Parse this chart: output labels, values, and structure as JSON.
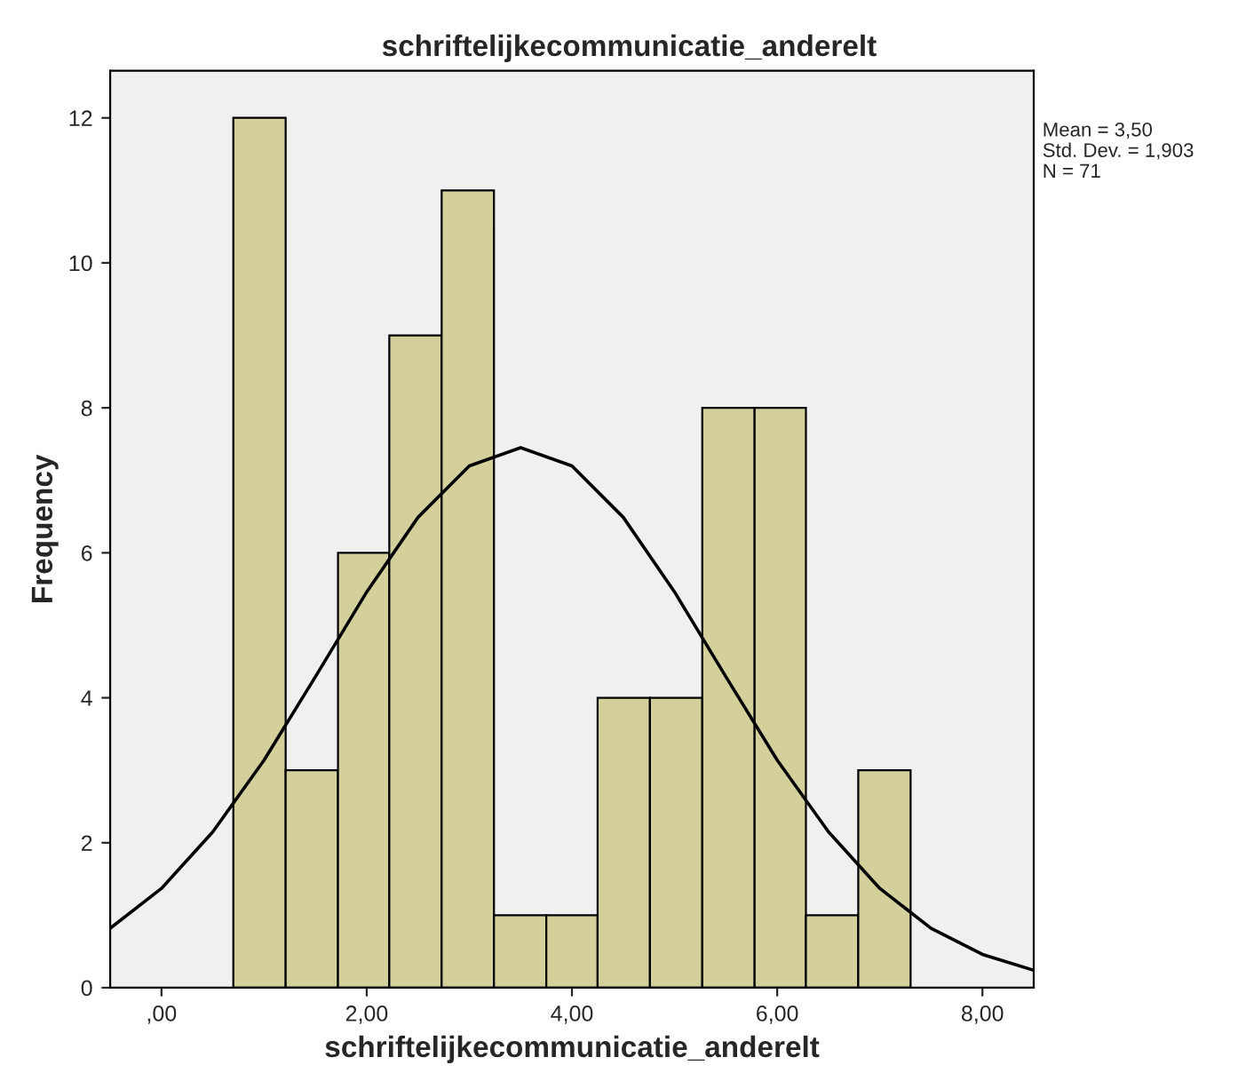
{
  "chart_data": {
    "type": "histogram",
    "title": "schriftelijkecommunicatie_anderelt",
    "xlabel": "schriftelijkecommunicatie_anderelt",
    "ylabel": "Frequency",
    "series": [
      {
        "color": "#d4d09c",
        "bins": [
          0.7,
          1.21,
          1.72,
          2.22,
          2.73,
          3.24,
          3.75,
          4.25,
          4.76,
          5.27,
          5.78,
          6.28,
          6.79,
          7.3
        ],
        "values": [
          12,
          3,
          6,
          9,
          11,
          1,
          1,
          4,
          4,
          8,
          8,
          1,
          3
        ]
      },
      {
        "type": "line",
        "color": "#000000",
        "x": [
          -0.5,
          0,
          0.5,
          1,
          1.5,
          2,
          2.5,
          3,
          3.5,
          4,
          4.5,
          5,
          5.5,
          6,
          6.5,
          7,
          7.5,
          8,
          8.5
        ],
        "values": [
          0.82,
          1.37,
          2.15,
          3.14,
          4.29,
          5.46,
          6.49,
          7.2,
          7.45,
          7.2,
          6.49,
          5.46,
          4.29,
          3.14,
          2.15,
          1.37,
          0.82,
          0.46,
          0.24
        ]
      }
    ],
    "xlim": [
      -0.5,
      8.5
    ],
    "xticks": [
      {
        "value": 0,
        "label": ",00"
      },
      {
        "value": 2,
        "label": "2,00"
      },
      {
        "value": 4,
        "label": "4,00"
      },
      {
        "value": 6,
        "label": "6,00"
      },
      {
        "value": 8,
        "label": "8,00"
      }
    ],
    "ylim": [
      0,
      12.65
    ],
    "yticks": [
      0,
      2,
      4,
      6,
      8,
      10,
      12
    ],
    "annotations": [
      "Mean = 3,50",
      "Std. Dev. = 1,903",
      "N = 71"
    ],
    "grid": false,
    "legend": false
  }
}
